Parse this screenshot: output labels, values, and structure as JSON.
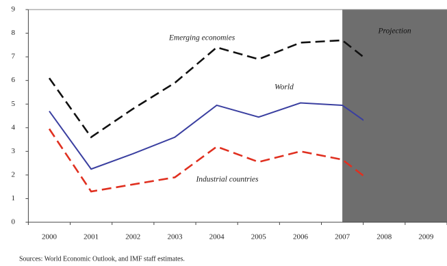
{
  "chart_data": {
    "type": "line",
    "categories": [
      "2000",
      "2001",
      "2002",
      "2003",
      "2004",
      "2005",
      "2006",
      "2007",
      "2008",
      "2009"
    ],
    "series": [
      {
        "name": "Emerging economies",
        "color": "#111111",
        "dash": true,
        "values": [
          6.1,
          3.6,
          4.8,
          5.9,
          7.4,
          6.9,
          7.6,
          7.7,
          6.3,
          null
        ]
      },
      {
        "name": "World",
        "color": "#3a3fa0",
        "dash": false,
        "values": [
          4.7,
          2.25,
          2.9,
          3.6,
          4.95,
          4.45,
          5.05,
          4.95,
          3.7,
          null
        ]
      },
      {
        "name": "Industrial countries",
        "color": "#e03020",
        "dash": true,
        "values": [
          3.95,
          1.3,
          1.6,
          1.9,
          3.2,
          2.55,
          3.0,
          2.65,
          1.3,
          null
        ]
      }
    ],
    "ylim": [
      0,
      9
    ],
    "yticks": [
      0,
      1,
      2,
      3,
      4,
      5,
      6,
      7,
      8,
      9
    ],
    "projection_label": "Projection",
    "source": "Sources: World Economic Outlook, and IMF staff estimates."
  }
}
